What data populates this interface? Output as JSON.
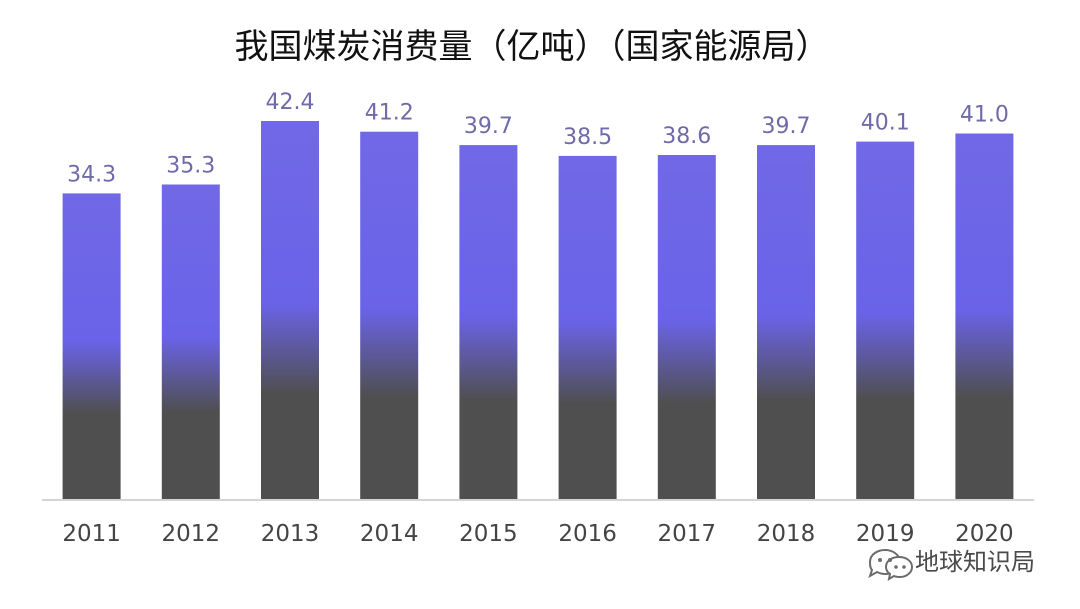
{
  "chart_data": {
    "type": "bar",
    "title": "我国煤炭消费量（亿吨）（国家能源局）",
    "categories": [
      "2011",
      "2012",
      "2013",
      "2014",
      "2015",
      "2016",
      "2017",
      "2018",
      "2019",
      "2020"
    ],
    "values": [
      34.3,
      35.3,
      42.4,
      41.2,
      39.7,
      38.5,
      38.6,
      39.7,
      40.1,
      41.0
    ],
    "value_labels": [
      "34.3",
      "35.3",
      "42.4",
      "41.2",
      "39.7",
      "38.5",
      "38.6",
      "39.7",
      "40.1",
      "41.0"
    ],
    "xlabel": "",
    "ylabel": "",
    "ylim": [
      0,
      45
    ],
    "grid": false,
    "legend": "none",
    "colors": {
      "bar_top": "#7068e6",
      "bar_mid": "#6a63e8",
      "bar_bottom": "#4f4f4f",
      "value_label": "#6f6aa8",
      "axis_line": "#d4d4d4"
    }
  },
  "watermark": {
    "text": "地球知识局",
    "icon": "wechat-icon"
  }
}
